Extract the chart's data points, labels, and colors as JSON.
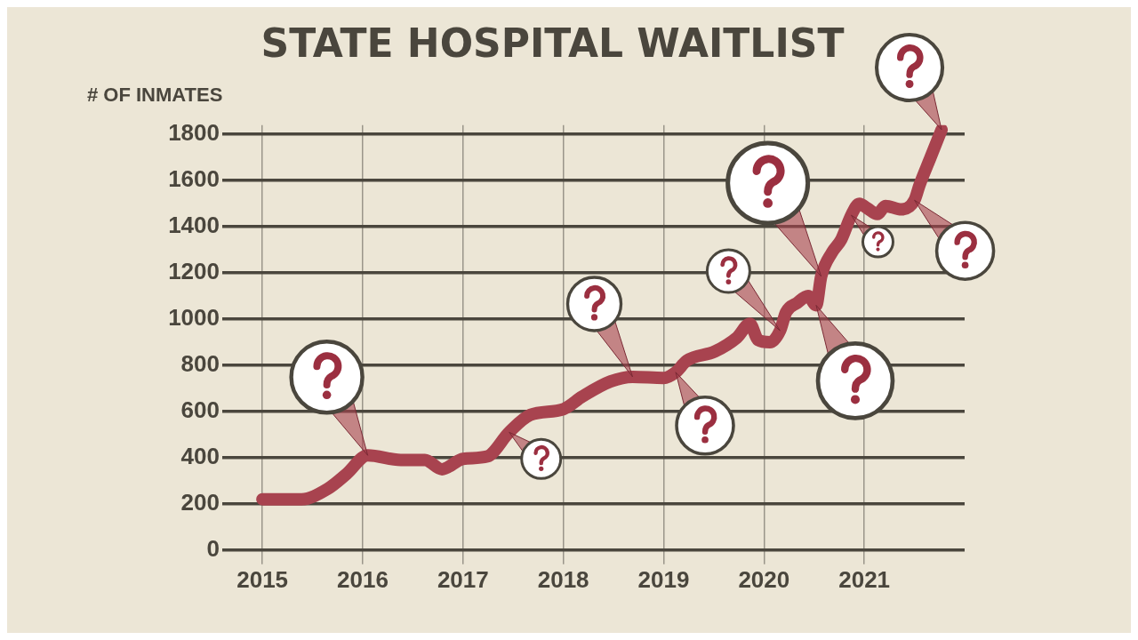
{
  "chart_data": {
    "type": "line",
    "title": "STATE HOSPITAL WAITLIST",
    "ylabel": "# OF INMATES",
    "xlim": [
      2014.6,
      2022
    ],
    "xticks": [
      2015,
      2016,
      2017,
      2018,
      2019,
      2020,
      2021
    ],
    "ylim": [
      0,
      1840
    ],
    "yticks": [
      0,
      200,
      400,
      600,
      800,
      1000,
      1200,
      1400,
      1600,
      1800
    ],
    "grid": true,
    "marker": "none",
    "series": [
      {
        "color": "#a8434f",
        "x": [
          2015,
          2015.39,
          2015.65,
          2015.84,
          2016.05,
          2016.38,
          2016.62,
          2016.79,
          2017,
          2017.24,
          2017.46,
          2017.67,
          2018,
          2018.19,
          2018.47,
          2018.69,
          2019,
          2019.12,
          2019.23,
          2019.51,
          2019.73,
          2019.86,
          2019.94,
          2020.06,
          2020.16,
          2020.22,
          2020.33,
          2020.44,
          2020.52,
          2020.57,
          2020.68,
          2020.77,
          2020.87,
          2020.95,
          2021.03,
          2021.13,
          2021.21,
          2021.37,
          2021.5,
          2021.55,
          2021.66,
          2021.77
        ],
        "values": [
          220,
          220,
          265,
          330,
          410,
          390,
          390,
          350,
          395,
          405,
          510,
          585,
          610,
          665,
          730,
          750,
          745,
          770,
          820,
          860,
          920,
          980,
          910,
          900,
          950,
          1030,
          1070,
          1100,
          1060,
          1185,
          1290,
          1345,
          1450,
          1500,
          1480,
          1455,
          1490,
          1475,
          1515,
          1580,
          1700,
          1820
        ]
      }
    ]
  }
}
